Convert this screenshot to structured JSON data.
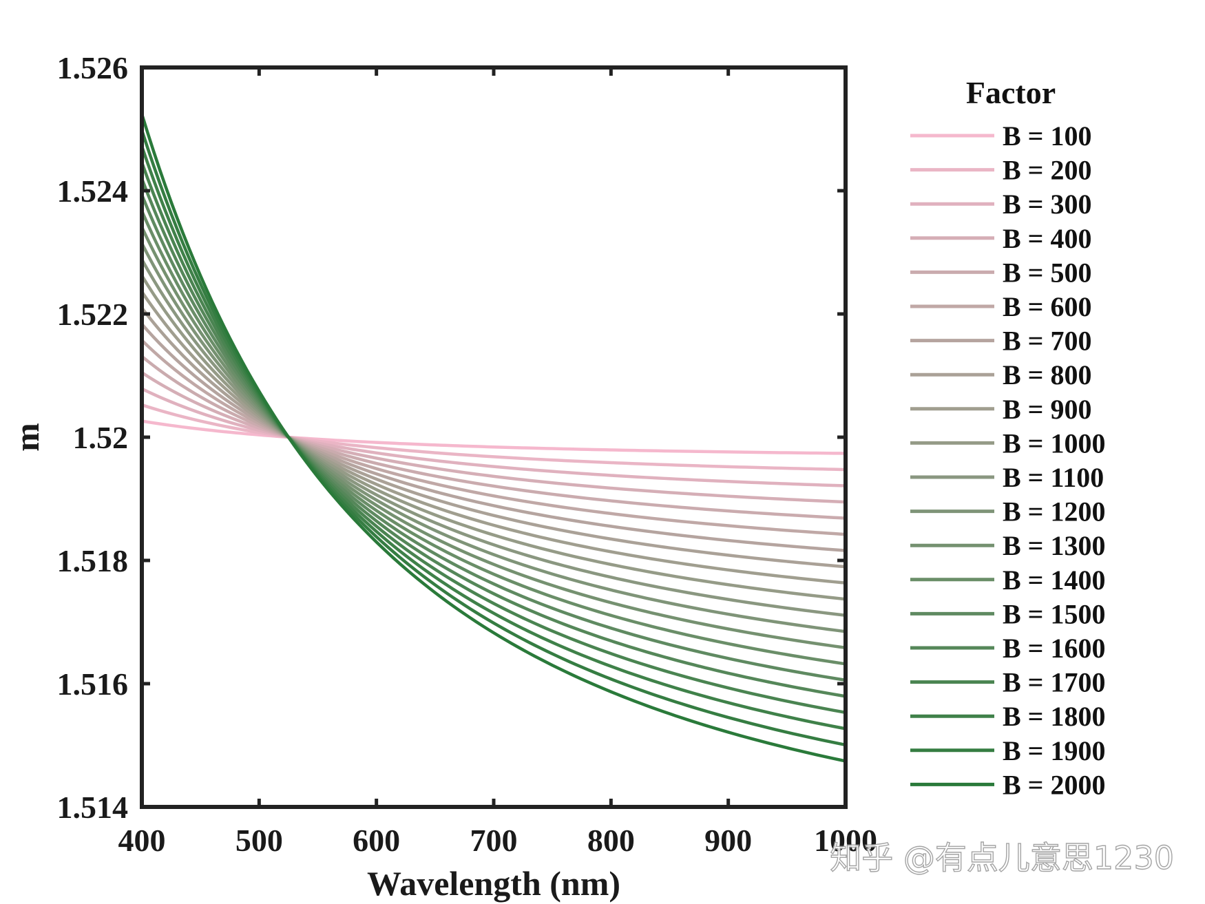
{
  "chart_data": {
    "type": "line",
    "xlabel": "Wavelength (nm)",
    "ylabel": "m",
    "xlim": [
      400,
      1000
    ],
    "ylim": [
      1.514,
      1.526
    ],
    "xticks": [
      "400",
      "500",
      "600",
      "700",
      "800",
      "900",
      "1000"
    ],
    "yticks": [
      "1.514",
      "1.516",
      "1.518",
      "1.52",
      "1.522",
      "1.524",
      "1.526"
    ],
    "legend_title": "Factor",
    "legend_position": "right",
    "grid": false,
    "model": "m = 1.52 + B*(1/λ^2 - 1/525^2), λ in nm",
    "color_start": "#f5b8cd",
    "color_end": "#2a7a3a",
    "series": [
      {
        "name": "B = 100",
        "B": 100
      },
      {
        "name": "B = 200",
        "B": 200
      },
      {
        "name": "B = 300",
        "B": 300
      },
      {
        "name": "B = 400",
        "B": 400
      },
      {
        "name": "B = 500",
        "B": 500
      },
      {
        "name": "B = 600",
        "B": 600
      },
      {
        "name": "B = 700",
        "B": 700
      },
      {
        "name": "B = 800",
        "B": 800
      },
      {
        "name": "B = 900",
        "B": 900
      },
      {
        "name": "B = 1000",
        "B": 1000
      },
      {
        "name": "B = 1100",
        "B": 1100
      },
      {
        "name": "B = 1200",
        "B": 1200
      },
      {
        "name": "B = 1300",
        "B": 1300
      },
      {
        "name": "B = 1400",
        "B": 1400
      },
      {
        "name": "B = 1500",
        "B": 1500
      },
      {
        "name": "B = 1600",
        "B": 1600
      },
      {
        "name": "B = 1700",
        "B": 1700
      },
      {
        "name": "B = 1800",
        "B": 1800
      },
      {
        "name": "B = 1900",
        "B": 1900
      },
      {
        "name": "B = 2000",
        "B": 2000
      }
    ]
  },
  "watermark": "知乎 @有点儿意思1230"
}
